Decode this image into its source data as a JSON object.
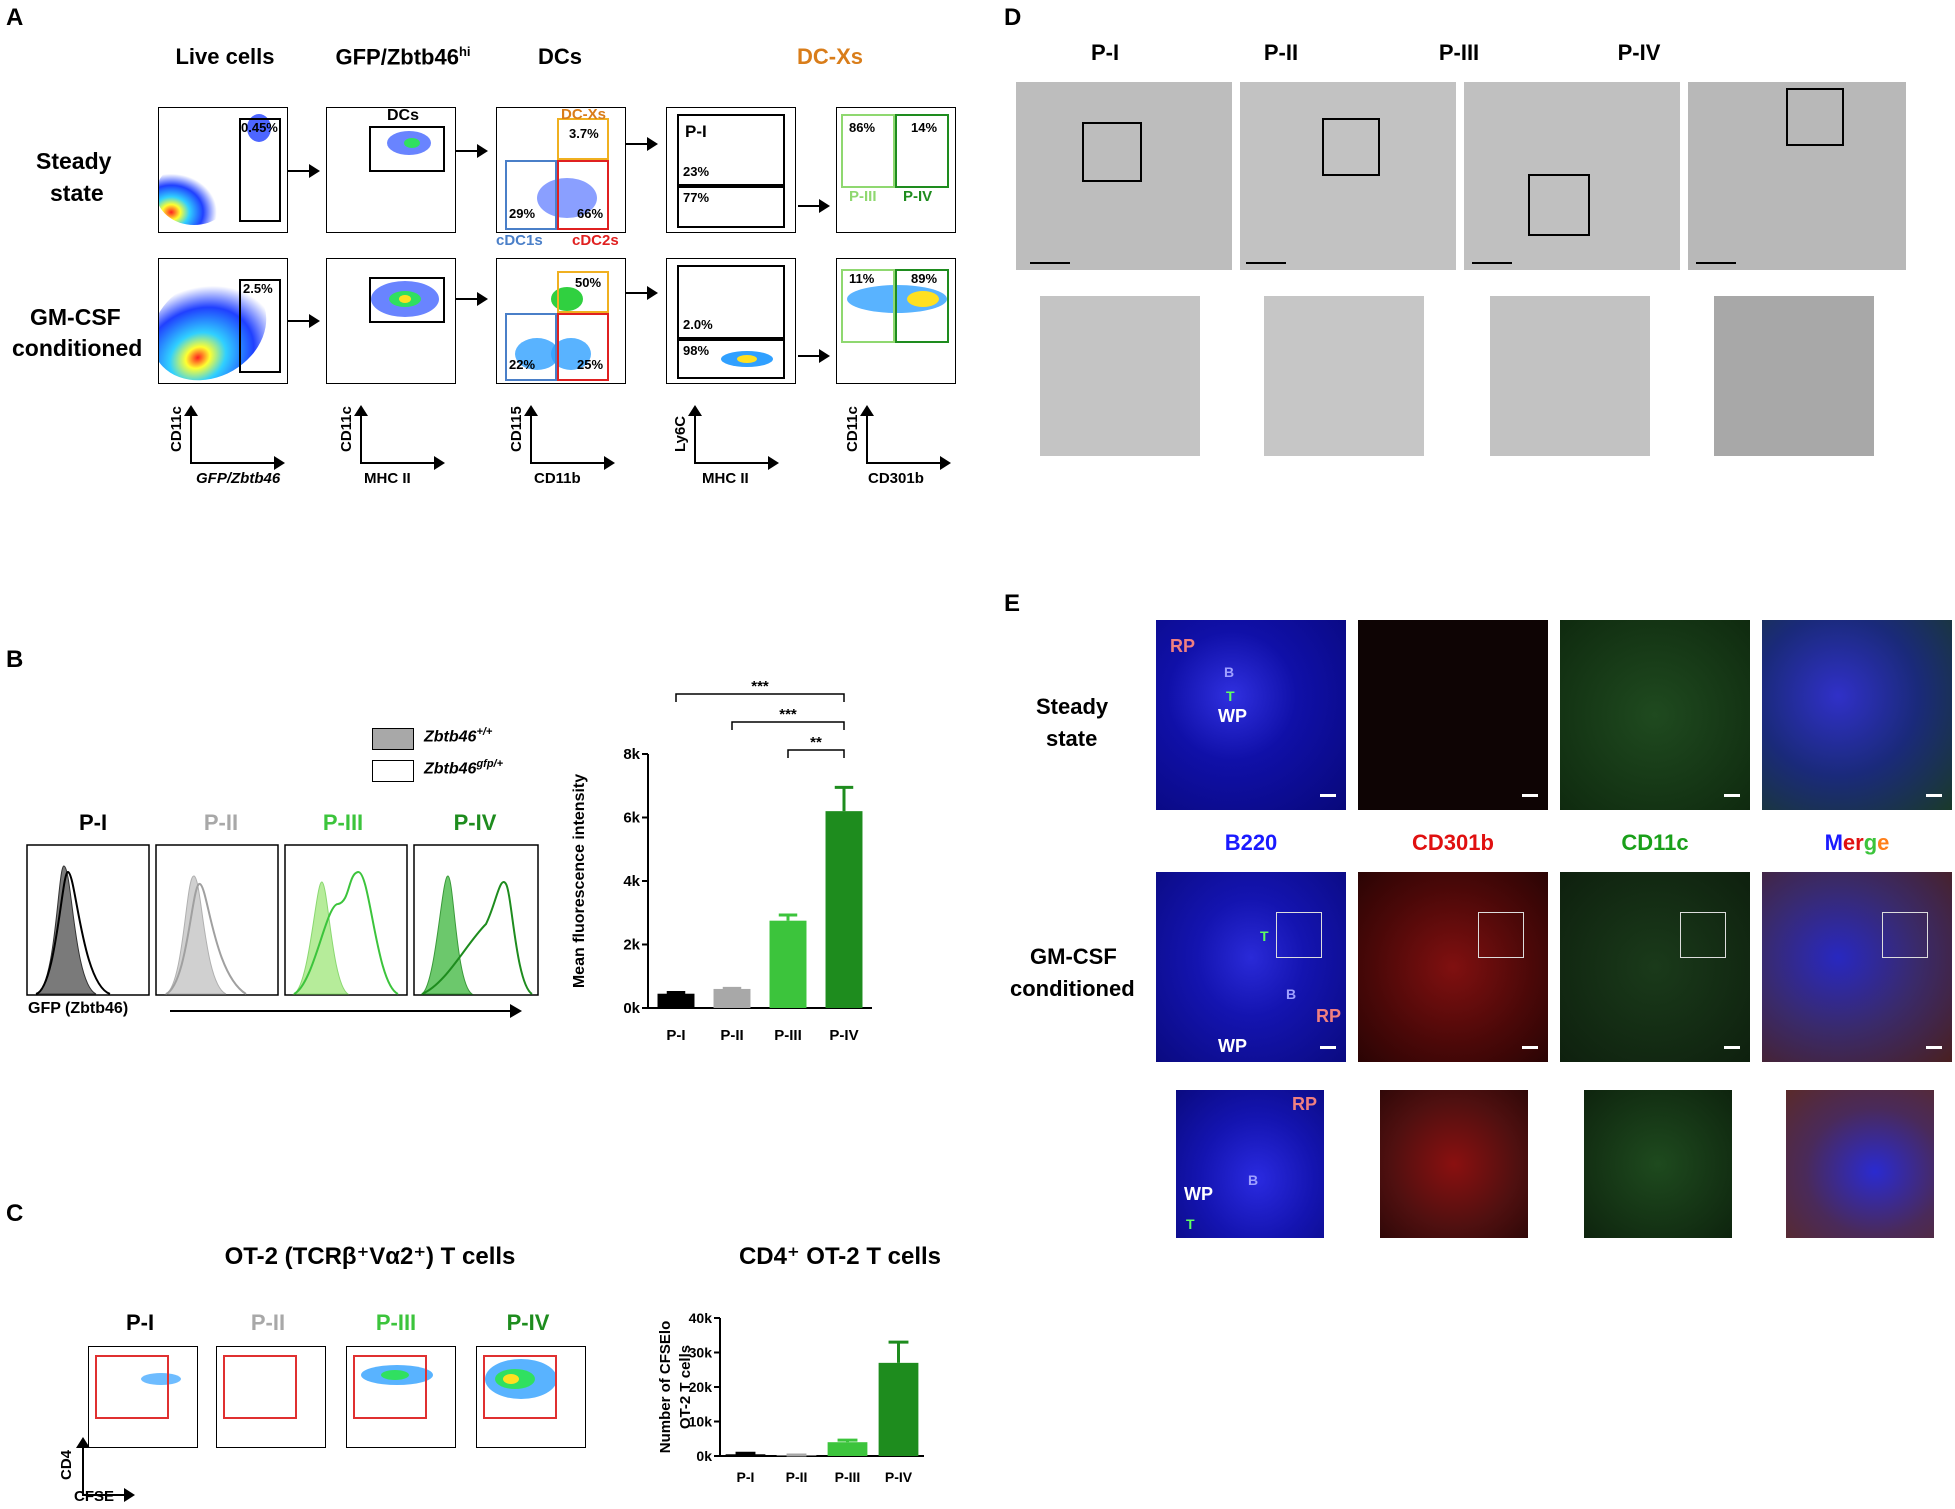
{
  "panel_letters": {
    "A": "A",
    "B": "B",
    "C": "C",
    "D": "D",
    "E": "E"
  },
  "panelA": {
    "col_headers": [
      "Live cells",
      "GFP/Zbtb46",
      "DCs",
      "DC-Xs"
    ],
    "col2_sup": "hi",
    "dcx_color": "#d97d1a",
    "row_labels": {
      "steady_1": "Steady",
      "steady_2": "state",
      "gm_1": "GM-CSF",
      "gm_2": "conditioned"
    },
    "steady": {
      "live_pct": "0.45%",
      "gfp_gate_label": "DCs",
      "dc_xs_label": "DC-Xs",
      "dc_xs_pct": "3.7%",
      "cdc1_pct": "29%",
      "cdc2_pct": "66%",
      "cdc1_label": "cDC1s",
      "cdc2_label": "cDC2s",
      "pI_label": "P-I",
      "pI_pct": "23%",
      "pII_pct": "77%",
      "pIII_pct": "86%",
      "pIV_pct": "14%",
      "pIII_label": "P-III",
      "pIV_label": "P-IV"
    },
    "gm": {
      "live_pct": "2.5%",
      "dc_xs_pct": "50%",
      "cdc1_pct": "22%",
      "cdc2_pct": "25%",
      "pI_pct": "2.0%",
      "pII_pct": "98%",
      "pIII_pct": "11%",
      "pIV_pct": "89%"
    },
    "axes": [
      {
        "y": "CD11c",
        "x": "GFP/Zbtb46"
      },
      {
        "y": "CD11c",
        "x": "MHC II"
      },
      {
        "y": "CD115",
        "x": "CD11b"
      },
      {
        "y": "Ly6C",
        "x": "MHC II"
      },
      {
        "y": "CD11c",
        "x": "CD301b"
      }
    ]
  },
  "panelB": {
    "legend": [
      {
        "label": "Zbtb46",
        "sup": "+/+"
      },
      {
        "label": "Zbtb46",
        "sup": "gfp/+"
      }
    ],
    "hist_titles": [
      "P-I",
      "P-II",
      "P-III",
      "P-IV"
    ],
    "x_axis_label": "GFP (Zbtb46)",
    "colors": [
      "#000000",
      "#a8a8a8",
      "#3cc43c",
      "#1e8c1e"
    ],
    "chart_data": {
      "type": "bar",
      "categories": [
        "P-I",
        "P-II",
        "P-III",
        "P-IV"
      ],
      "values": [
        450,
        600,
        2750,
        6200
      ],
      "errors": [
        40,
        20,
        180,
        750
      ],
      "ylabel": "Mean fluorescence intensity",
      "ylim": [
        0,
        8000
      ],
      "yticks": [
        "0k",
        "2k",
        "4k",
        "6k",
        "8k"
      ],
      "significance": [
        "***",
        "***",
        "**"
      ]
    }
  },
  "panelC": {
    "title": "OT-2 (TCRβ⁺Vα2⁺)  T cells",
    "plot_titles": [
      "P-I",
      "P-II",
      "P-III",
      "P-IV"
    ],
    "axis_y": "CD4",
    "axis_x": "CFSE",
    "chart_data": {
      "type": "bar",
      "title": "CD4⁺ OT-2  T cells",
      "categories": [
        "P-I",
        "P-II",
        "P-III",
        "P-IV"
      ],
      "values": [
        500,
        200,
        4000,
        27000
      ],
      "errors": [
        300,
        100,
        600,
        6000
      ],
      "ylabel": "Number of CFSElo OT-2 T cells",
      "ylim": [
        0,
        40000
      ],
      "yticks": [
        "0k",
        "10k",
        "20k",
        "30k",
        "40k"
      ]
    }
  },
  "panelD": {
    "titles": [
      "P-I",
      "P-II",
      "P-III",
      "P-IV"
    ]
  },
  "panelE": {
    "row_labels": {
      "steady_1": "Steady",
      "steady_2": "state",
      "gm_1": "GM-CSF",
      "gm_2": "conditioned"
    },
    "channels": [
      {
        "label": "B220",
        "color": "#1a1aff"
      },
      {
        "label": "CD301b",
        "color": "#e01010"
      },
      {
        "label": "CD11c",
        "color": "#1aa01a"
      }
    ],
    "merge": [
      "M",
      "er",
      "g",
      "e"
    ],
    "merge_colors": [
      "#1a1aff",
      "#e01010",
      "#3cc43c",
      "#ff7f1a"
    ],
    "region_labels": {
      "RP": "RP",
      "B": "B",
      "T": "T",
      "WP": "WP"
    }
  }
}
